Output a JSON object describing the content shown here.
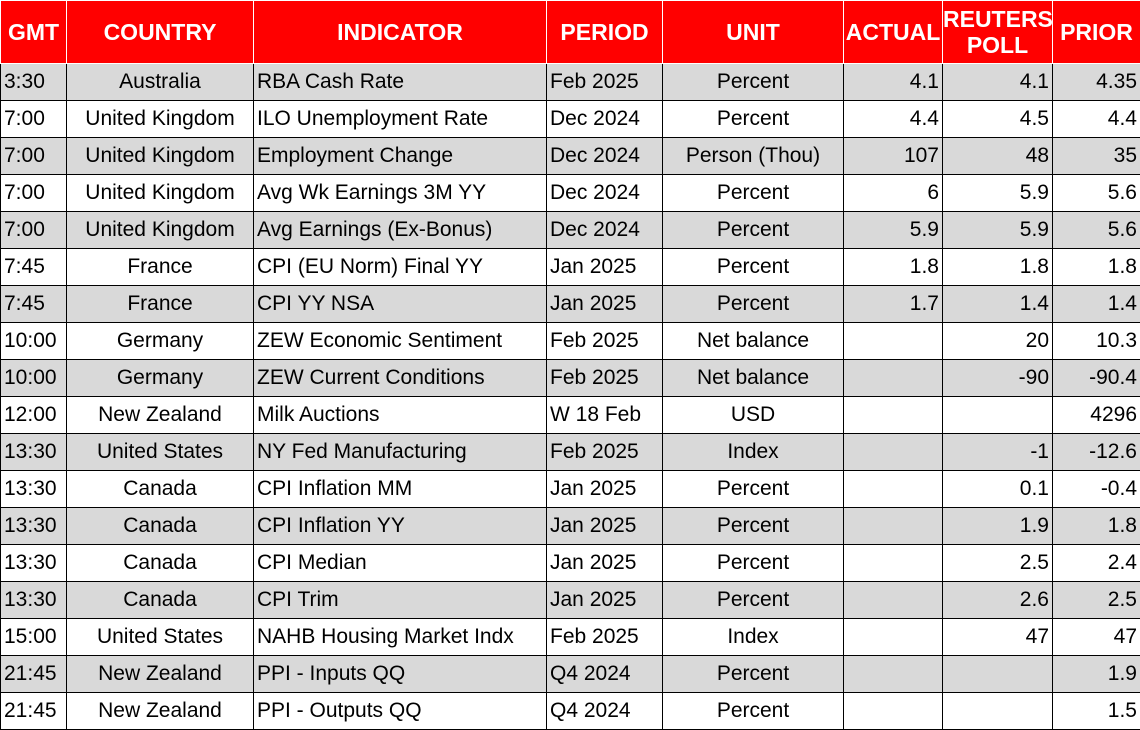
{
  "headers": {
    "gmt": "GMT",
    "country": "COUNTRY",
    "indicator": "INDICATOR",
    "period": "PERIOD",
    "unit": "UNIT",
    "actual": "ACTUAL",
    "poll_line1": "REUTERS",
    "poll_line2": "POLL",
    "prior": "PRIOR"
  },
  "colors": {
    "header_bg": "#ff0000",
    "header_text": "#ffffff",
    "shaded_row": "#d9d9d9",
    "plain_row": "#ffffff",
    "grid": "#000000"
  },
  "rows": [
    {
      "gmt": "3:30",
      "country": "Australia",
      "indicator": "RBA Cash Rate",
      "period": "Feb 2025",
      "unit": "Percent",
      "actual": "4.1",
      "poll": "4.1",
      "prior": "4.35"
    },
    {
      "gmt": "7:00",
      "country": "United Kingdom",
      "indicator": "ILO Unemployment Rate",
      "period": "Dec 2024",
      "unit": "Percent",
      "actual": "4.4",
      "poll": "4.5",
      "prior": "4.4"
    },
    {
      "gmt": "7:00",
      "country": "United Kingdom",
      "indicator": "Employment Change",
      "period": "Dec 2024",
      "unit": "Person (Thou)",
      "actual": "107",
      "poll": "48",
      "prior": "35"
    },
    {
      "gmt": "7:00",
      "country": "United Kingdom",
      "indicator": "Avg Wk Earnings 3M YY",
      "period": "Dec 2024",
      "unit": "Percent",
      "actual": "6",
      "poll": "5.9",
      "prior": "5.6"
    },
    {
      "gmt": "7:00",
      "country": "United Kingdom",
      "indicator": "Avg Earnings (Ex-Bonus)",
      "period": "Dec 2024",
      "unit": "Percent",
      "actual": "5.9",
      "poll": "5.9",
      "prior": "5.6"
    },
    {
      "gmt": "7:45",
      "country": "France",
      "indicator": "CPI (EU Norm) Final YY",
      "period": "Jan 2025",
      "unit": "Percent",
      "actual": "1.8",
      "poll": "1.8",
      "prior": "1.8"
    },
    {
      "gmt": "7:45",
      "country": "France",
      "indicator": "CPI YY NSA",
      "period": "Jan 2025",
      "unit": "Percent",
      "actual": "1.7",
      "poll": "1.4",
      "prior": "1.4"
    },
    {
      "gmt": "10:00",
      "country": "Germany",
      "indicator": "ZEW Economic Sentiment",
      "period": "Feb 2025",
      "unit": "Net balance",
      "actual": "",
      "poll": "20",
      "prior": "10.3"
    },
    {
      "gmt": "10:00",
      "country": "Germany",
      "indicator": "ZEW Current Conditions",
      "period": "Feb 2025",
      "unit": "Net balance",
      "actual": "",
      "poll": "-90",
      "prior": "-90.4"
    },
    {
      "gmt": "12:00",
      "country": "New Zealand",
      "indicator": "Milk Auctions",
      "period": "W 18 Feb",
      "unit": "USD",
      "actual": "",
      "poll": "",
      "prior": "4296"
    },
    {
      "gmt": "13:30",
      "country": "United States",
      "indicator": "NY Fed Manufacturing",
      "period": "Feb 2025",
      "unit": "Index",
      "actual": "",
      "poll": "-1",
      "prior": "-12.6"
    },
    {
      "gmt": "13:30",
      "country": "Canada",
      "indicator": "CPI Inflation MM",
      "period": "Jan 2025",
      "unit": "Percent",
      "actual": "",
      "poll": "0.1",
      "prior": "-0.4"
    },
    {
      "gmt": "13:30",
      "country": "Canada",
      "indicator": "CPI Inflation YY",
      "period": "Jan 2025",
      "unit": "Percent",
      "actual": "",
      "poll": "1.9",
      "prior": "1.8"
    },
    {
      "gmt": "13:30",
      "country": "Canada",
      "indicator": "CPI Median",
      "period": "Jan 2025",
      "unit": "Percent",
      "actual": "",
      "poll": "2.5",
      "prior": "2.4"
    },
    {
      "gmt": "13:30",
      "country": "Canada",
      "indicator": "CPI Trim",
      "period": "Jan 2025",
      "unit": "Percent",
      "actual": "",
      "poll": "2.6",
      "prior": "2.5"
    },
    {
      "gmt": "15:00",
      "country": "United States",
      "indicator": "NAHB Housing Market Indx",
      "period": "Feb 2025",
      "unit": "Index",
      "actual": "",
      "poll": "47",
      "prior": "47"
    },
    {
      "gmt": "21:45",
      "country": "New Zealand",
      "indicator": "PPI - Inputs QQ",
      "period": "Q4 2024",
      "unit": "Percent",
      "actual": "",
      "poll": "",
      "prior": "1.9"
    },
    {
      "gmt": "21:45",
      "country": "New Zealand",
      "indicator": "PPI - Outputs QQ",
      "period": "Q4 2024",
      "unit": "Percent",
      "actual": "",
      "poll": "",
      "prior": "1.5"
    }
  ]
}
